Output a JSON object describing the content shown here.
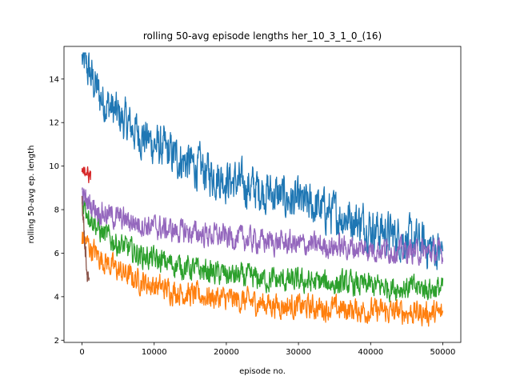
{
  "chart_data": {
    "type": "line",
    "title": "rolling 50-avg episode lengths her_10_3_1_0_(16)",
    "xlabel": "episode no.",
    "ylabel": "rolling 50-avg ep. length",
    "xlim": [
      -2500,
      52500
    ],
    "ylim": [
      1.9,
      15.5
    ],
    "xticks": [
      0,
      10000,
      20000,
      30000,
      40000,
      50000
    ],
    "yticks": [
      2,
      4,
      6,
      8,
      10,
      12,
      14
    ],
    "grid": false,
    "legend": "none",
    "series": [
      {
        "color": "#1f77b4",
        "x": [
          0,
          1000,
          2500,
          5000,
          7500,
          10000,
          12500,
          15000,
          17500,
          20000,
          22500,
          25000,
          27500,
          30000,
          32500,
          35000,
          37500,
          40000,
          42500,
          45000,
          47500,
          50000
        ],
        "y": [
          14.9,
          14.3,
          13.2,
          12.3,
          11.6,
          11.0,
          10.5,
          10.1,
          9.7,
          9.4,
          9.1,
          8.9,
          8.6,
          8.3,
          8.1,
          7.8,
          7.6,
          7.2,
          6.9,
          6.6,
          6.4,
          6.0
        ],
        "noise": 0.8
      },
      {
        "color": "#ff7f0e",
        "x": [
          0,
          1000,
          2500,
          5000,
          7500,
          10000,
          12500,
          15000,
          17500,
          20000,
          22500,
          25000,
          27500,
          30000,
          32500,
          35000,
          37500,
          40000,
          42500,
          45000,
          47500,
          50000
        ],
        "y": [
          6.8,
          6.3,
          5.8,
          5.2,
          4.8,
          4.5,
          4.3,
          4.1,
          4.0,
          3.9,
          3.8,
          3.7,
          3.6,
          3.55,
          3.5,
          3.45,
          3.4,
          3.35,
          3.3,
          3.3,
          3.25,
          3.2
        ],
        "noise": 0.45
      },
      {
        "color": "#2ca02c",
        "x": [
          0,
          1000,
          2500,
          5000,
          7500,
          10000,
          12500,
          15000,
          17500,
          20000,
          22500,
          25000,
          27500,
          30000,
          32500,
          35000,
          37500,
          40000,
          42500,
          45000,
          47500,
          50000
        ],
        "y": [
          8.4,
          7.8,
          7.0,
          6.4,
          6.0,
          5.7,
          5.5,
          5.3,
          5.15,
          5.0,
          4.9,
          4.8,
          4.75,
          4.7,
          4.65,
          4.6,
          4.55,
          4.5,
          4.45,
          4.4,
          4.4,
          4.35
        ],
        "noise": 0.45
      },
      {
        "color": "#d62728",
        "x": [
          0,
          300,
          600,
          900,
          1200
        ],
        "y": [
          9.8,
          9.6,
          9.9,
          9.5,
          9.7
        ],
        "noise": 0.25
      },
      {
        "color": "#9467bd",
        "x": [
          0,
          1000,
          2500,
          5000,
          7500,
          10000,
          12500,
          15000,
          17500,
          20000,
          22500,
          25000,
          27500,
          30000,
          32500,
          35000,
          37500,
          40000,
          42500,
          45000,
          47500,
          50000
        ],
        "y": [
          8.6,
          8.3,
          7.9,
          7.6,
          7.4,
          7.2,
          7.05,
          6.95,
          6.85,
          6.75,
          6.65,
          6.55,
          6.5,
          6.4,
          6.35,
          6.3,
          6.25,
          6.2,
          6.15,
          6.1,
          6.05,
          6.0
        ],
        "noise": 0.45
      },
      {
        "color": "#8c564b",
        "x": [
          0,
          200,
          400,
          600,
          800,
          1000
        ],
        "y": [
          8.5,
          7.5,
          6.5,
          5.5,
          4.8,
          4.4
        ],
        "noise": 0.35
      }
    ]
  }
}
